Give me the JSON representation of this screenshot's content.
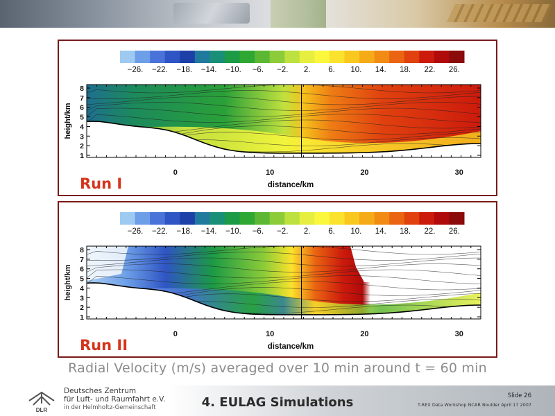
{
  "colorbar": {
    "colors": [
      "#9ec9f0",
      "#6d9ee8",
      "#4a73d9",
      "#2f55c4",
      "#1d40a8",
      "#1f7a9e",
      "#1a8f78",
      "#1c9a45",
      "#2fa833",
      "#5cb832",
      "#8ccc38",
      "#bde13e",
      "#e6ef3f",
      "#faf73c",
      "#fbe22c",
      "#f8c81f",
      "#f5ab18",
      "#f18b14",
      "#ea6411",
      "#e0410f",
      "#cc1a0c",
      "#b00a0a",
      "#8b0a0a"
    ],
    "labels": [
      "−26.",
      "−22.",
      "−18.",
      "−14.",
      "−10.",
      "−6.",
      "−2.",
      "2.",
      "6.",
      "10.",
      "14.",
      "18.",
      "22.",
      "26."
    ]
  },
  "axes": {
    "y_label": "height/km",
    "x_label": "distance/km",
    "y_ticks": [
      "1",
      "2",
      "3",
      "4",
      "5",
      "6",
      "7",
      "8"
    ],
    "x_ticks": [
      "0",
      "10",
      "20",
      "30"
    ]
  },
  "panels": [
    {
      "label": "Run I"
    },
    {
      "label": "Run II"
    }
  ],
  "caption": "Radial Velocity (m/s) averaged over 10 min around t = 60 min",
  "footer": {
    "org_line1": "Deutsches Zentrum",
    "org_line2": "für Luft- und Raumfahrt e.V.",
    "org_line3": "in der Helmholtz-Gemeinschaft",
    "logo_text": "DLR",
    "section_title": "4. EULAG Simulations",
    "slide_number": "Slide 26",
    "workshop": "T-REX Data Workshop NCAR Boulder April 17 2007"
  }
}
